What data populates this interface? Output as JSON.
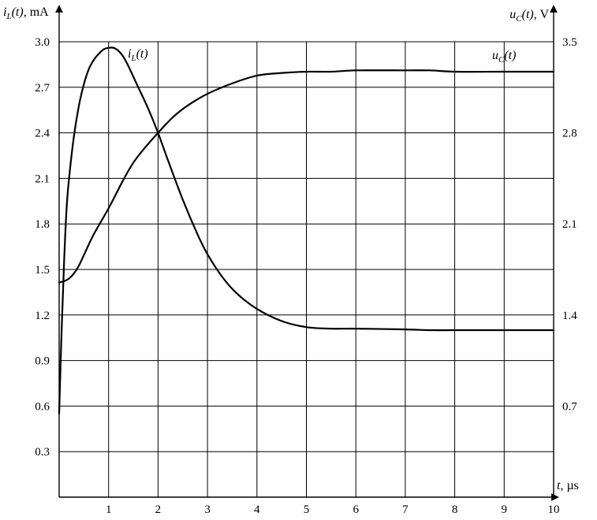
{
  "chart_data": {
    "type": "line",
    "x_label": {
      "var": "t",
      "unit": ", µs"
    },
    "y_left_label": {
      "main": "i",
      "sub": "L",
      "rest": "(t)",
      "unit": ", mA"
    },
    "y_right_label": {
      "main": "u",
      "sub": "C",
      "rest": "(t)",
      "unit": ", V"
    },
    "xlim": [
      0,
      10
    ],
    "ylim_left": [
      0,
      3.0
    ],
    "ylim_right": [
      0,
      3.5
    ],
    "grid": true,
    "x_ticks": [
      "1",
      "2",
      "3",
      "4",
      "5",
      "6",
      "7",
      "8",
      "9",
      "10"
    ],
    "y_left_ticks": [
      "0.3",
      "0.6",
      "0.9",
      "1.2",
      "1.5",
      "1.8",
      "2.1",
      "2.4",
      "2.7",
      "3.0"
    ],
    "y_right_ticks": [
      "0.7",
      "1.4",
      "2.1",
      "2.8",
      "3.5"
    ],
    "series": [
      {
        "name": {
          "main": "i",
          "sub": "L",
          "rest": "(t)"
        },
        "axis": "left",
        "x": [
          0,
          0.05,
          0.1,
          0.15,
          0.2,
          0.3,
          0.4,
          0.5,
          0.6,
          0.7,
          0.8,
          0.9,
          1.0,
          1.1,
          1.2,
          1.3,
          1.4,
          1.5,
          1.6,
          1.8,
          2.0,
          2.2,
          2.5,
          2.8,
          3.0,
          3.3,
          3.6,
          4.0,
          4.5,
          5.0,
          5.5,
          6.0,
          7.0,
          7.5,
          8.0,
          9.0,
          10.0
        ],
        "y": [
          0.55,
          1.1,
          1.55,
          1.9,
          2.1,
          2.38,
          2.58,
          2.72,
          2.82,
          2.88,
          2.92,
          2.95,
          2.96,
          2.96,
          2.94,
          2.9,
          2.84,
          2.77,
          2.7,
          2.56,
          2.4,
          2.22,
          1.96,
          1.73,
          1.6,
          1.45,
          1.34,
          1.24,
          1.16,
          1.12,
          1.11,
          1.11,
          1.105,
          1.1,
          1.1,
          1.1,
          1.1
        ]
      },
      {
        "name": {
          "main": "u",
          "sub": "C",
          "rest": "(t)"
        },
        "axis": "right",
        "x": [
          0,
          0.1,
          0.2,
          0.3,
          0.4,
          0.5,
          0.7,
          1.0,
          1.3,
          1.5,
          1.7,
          2.0,
          2.3,
          2.6,
          3.0,
          3.5,
          4.0,
          4.5,
          5.0,
          5.5,
          6.0,
          7.0,
          7.5,
          8.0,
          9.0,
          10.0
        ],
        "y": [
          1.65,
          1.66,
          1.68,
          1.72,
          1.78,
          1.86,
          2.02,
          2.22,
          2.44,
          2.57,
          2.67,
          2.8,
          2.92,
          3.01,
          3.1,
          3.18,
          3.24,
          3.26,
          3.27,
          3.27,
          3.28,
          3.28,
          3.28,
          3.27,
          3.27,
          3.27
        ]
      }
    ]
  }
}
